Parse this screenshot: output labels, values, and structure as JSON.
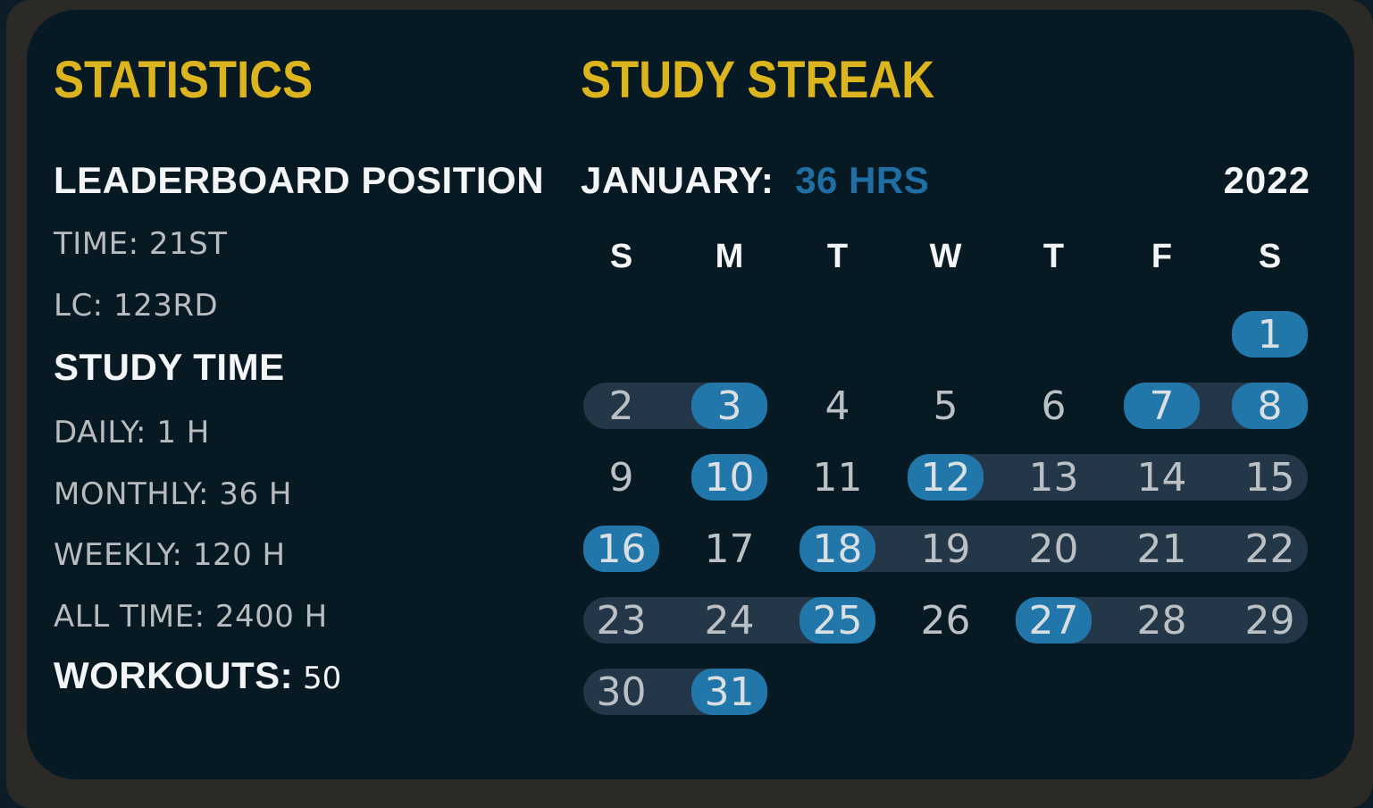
{
  "colors": {
    "panel_bg": "#071a23",
    "frame": "#2c2a27",
    "accent_yellow": "#dcb41e",
    "accent_blue": "#2177a9",
    "hours_text_blue": "#1f6fa4",
    "streak_band": "#243749",
    "text_white": "#f3f5f6",
    "text_muted": "#b9bcbe"
  },
  "statistics": {
    "title": "STATISTICS",
    "items": [
      {
        "id": "leaderboard-position",
        "label": "LEADERBOARD POSITION",
        "value": "",
        "style": "heading"
      },
      {
        "id": "time-rank",
        "label": "TIME:",
        "value": "21ST",
        "style": "muted"
      },
      {
        "id": "lc-rank",
        "label": "LC:",
        "value": "123RD",
        "style": "muted"
      },
      {
        "id": "study-time",
        "label": "STUDY TIME",
        "value": "",
        "style": "heading"
      },
      {
        "id": "daily",
        "label": "DAILY:",
        "value": "1 H",
        "style": "muted"
      },
      {
        "id": "monthly",
        "label": "MONTHLY:",
        "value": "36 H",
        "style": "muted"
      },
      {
        "id": "weekly",
        "label": "WEEKLY:",
        "value": "120 H",
        "style": "muted"
      },
      {
        "id": "all-time",
        "label": "ALL TIME:",
        "value": "2400 H",
        "style": "muted"
      },
      {
        "id": "workouts",
        "label": "WORKOUTS:",
        "value": "50",
        "style": "heading"
      }
    ]
  },
  "streak": {
    "title": "STUDY STREAK",
    "month_label": "JANUARY:",
    "hours_label": "36 HRS",
    "year": "2022",
    "day_headers": [
      "S",
      "M",
      "T",
      "W",
      "T",
      "F",
      "S"
    ],
    "highlighted_days": [
      1,
      3,
      7,
      8,
      10,
      12,
      16,
      18,
      25,
      27,
      31
    ],
    "weeks": [
      {
        "bands": [],
        "days": [
          {
            "n": 1,
            "col": 7,
            "highlight": true
          }
        ]
      },
      {
        "bands": [
          {
            "from": 1,
            "to": 2
          },
          {
            "from": 6,
            "to": 7
          }
        ],
        "days": [
          {
            "n": 2,
            "col": 1
          },
          {
            "n": 3,
            "col": 2,
            "highlight": true
          },
          {
            "n": 4,
            "col": 3
          },
          {
            "n": 5,
            "col": 4
          },
          {
            "n": 6,
            "col": 5
          },
          {
            "n": 7,
            "col": 6,
            "highlight": true
          },
          {
            "n": 8,
            "col": 7,
            "highlight": true
          }
        ]
      },
      {
        "bands": [
          {
            "from": 4,
            "to": 7
          }
        ],
        "days": [
          {
            "n": 9,
            "col": 1
          },
          {
            "n": 10,
            "col": 2,
            "highlight": true
          },
          {
            "n": 11,
            "col": 3
          },
          {
            "n": 12,
            "col": 4,
            "highlight": true
          },
          {
            "n": 13,
            "col": 5
          },
          {
            "n": 14,
            "col": 6
          },
          {
            "n": 15,
            "col": 7
          }
        ]
      },
      {
        "bands": [
          {
            "from": 3,
            "to": 7
          }
        ],
        "days": [
          {
            "n": 16,
            "col": 1,
            "highlight": true
          },
          {
            "n": 17,
            "col": 2
          },
          {
            "n": 18,
            "col": 3,
            "highlight": true
          },
          {
            "n": 19,
            "col": 4
          },
          {
            "n": 20,
            "col": 5
          },
          {
            "n": 21,
            "col": 6
          },
          {
            "n": 22,
            "col": 7
          }
        ]
      },
      {
        "bands": [
          {
            "from": 1,
            "to": 3
          },
          {
            "from": 5,
            "to": 7
          }
        ],
        "days": [
          {
            "n": 23,
            "col": 1
          },
          {
            "n": 24,
            "col": 2
          },
          {
            "n": 25,
            "col": 3,
            "highlight": true
          },
          {
            "n": 26,
            "col": 4
          },
          {
            "n": 27,
            "col": 5,
            "highlight": true
          },
          {
            "n": 28,
            "col": 6
          },
          {
            "n": 29,
            "col": 7
          }
        ]
      },
      {
        "bands": [
          {
            "from": 1,
            "to": 2
          }
        ],
        "days": [
          {
            "n": 30,
            "col": 1
          },
          {
            "n": 31,
            "col": 2,
            "highlight": true
          }
        ]
      }
    ]
  }
}
